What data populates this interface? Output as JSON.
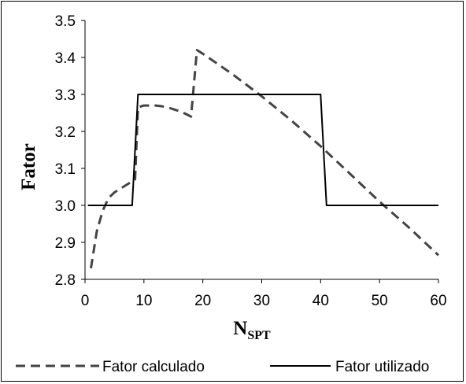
{
  "chart_data": {
    "type": "line",
    "xlabel": "N",
    "xlabel_sub": "SPT",
    "ylabel": "Fator",
    "xlim": [
      0,
      60
    ],
    "ylim": [
      2.8,
      3.5
    ],
    "xticks": [
      0,
      10,
      20,
      30,
      40,
      50,
      60
    ],
    "yticks": [
      2.8,
      2.9,
      3.0,
      3.1,
      3.2,
      3.3,
      3.4,
      3.5
    ],
    "ytick_labels": [
      "2.8",
      "2.9",
      "3.0",
      "3.1",
      "3.2",
      "3.3",
      "3.4",
      "3.5"
    ],
    "grid": false,
    "legend_position": "bottom",
    "series": [
      {
        "name": "Fator calculado",
        "style": "dashed",
        "color": "#444444",
        "x": [
          1,
          2,
          3,
          4,
          5,
          6,
          7,
          8,
          8.5,
          9,
          10,
          11,
          12,
          13,
          14,
          15,
          16,
          17,
          18,
          19,
          20,
          25,
          30,
          35,
          40,
          45,
          50,
          55,
          60
        ],
        "y": [
          2.83,
          2.93,
          2.985,
          3.02,
          3.035,
          3.045,
          3.055,
          3.065,
          3.07,
          3.265,
          3.27,
          3.27,
          3.27,
          3.268,
          3.265,
          3.26,
          3.255,
          3.248,
          3.24,
          3.42,
          3.41,
          3.355,
          3.295,
          3.23,
          3.16,
          3.085,
          3.01,
          2.94,
          2.865
        ]
      },
      {
        "name": "Fator utilizado",
        "style": "solid",
        "color": "#000000",
        "x": [
          0.5,
          8,
          9,
          40,
          41,
          60
        ],
        "y": [
          3.0,
          3.0,
          3.3,
          3.3,
          3.0,
          3.0
        ]
      }
    ]
  }
}
